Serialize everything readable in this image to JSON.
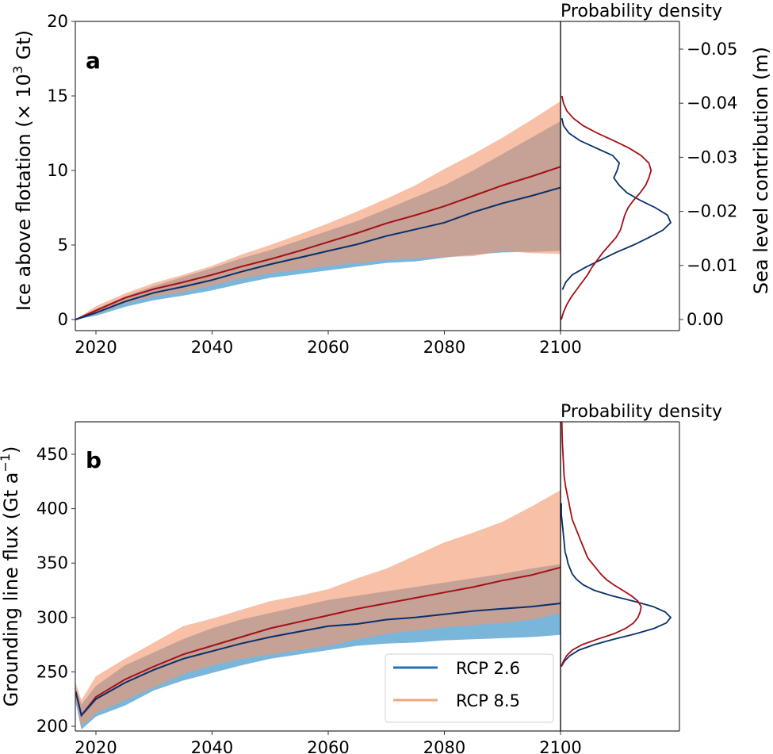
{
  "colors": {
    "rcp26_band": "#6baed6",
    "rcp85_band": "#f4a582",
    "overlap_band": "#c4a096",
    "rcp26_line": "#08306b",
    "rcp85_line": "#a50f15",
    "legend_rcp26": "#2171b5",
    "legend_rcp85": "#f4a582",
    "axis": "#333333"
  },
  "chart_data": [
    {
      "id": "a",
      "type": "area",
      "panel_label": "a",
      "title": "",
      "xlabel": "",
      "ylabel": "Ice above flotation (× 10³ Gt)",
      "ylabel_main": "Ice above flotation (× 10",
      "ylabel_sup": "3",
      "ylabel_tail": " Gt)",
      "xlim": [
        2016.5,
        2100
      ],
      "ylim": [
        -0.75,
        20
      ],
      "xticks": [
        2020,
        2040,
        2060,
        2080,
        2100
      ],
      "xtick_labels": [
        "2020",
        "2040",
        "2060",
        "2080",
        "2100"
      ],
      "yticks": [
        0,
        5,
        10,
        15,
        20
      ],
      "ytick_labels": [
        "0",
        "5",
        "10",
        "15",
        "20"
      ],
      "x": [
        2016.5,
        2020,
        2025,
        2030,
        2035,
        2040,
        2045,
        2050,
        2055,
        2060,
        2065,
        2070,
        2075,
        2080,
        2085,
        2090,
        2095,
        2100
      ],
      "series": [
        {
          "name": "RCP 2.6",
          "median": [
            0,
            0.45,
            1.2,
            1.8,
            2.2,
            2.65,
            3.2,
            3.7,
            4.15,
            4.6,
            5.05,
            5.6,
            6.05,
            6.5,
            7.2,
            7.8,
            8.3,
            8.85
          ],
          "low": [
            0,
            0.25,
            0.85,
            1.3,
            1.6,
            1.95,
            2.4,
            2.8,
            3.05,
            3.3,
            3.55,
            3.8,
            3.9,
            4.15,
            4.35,
            4.5,
            4.55,
            4.6
          ],
          "high": [
            0,
            0.7,
            1.55,
            2.25,
            2.85,
            3.45,
            4.1,
            4.65,
            5.3,
            5.95,
            6.6,
            7.4,
            8.2,
            9.0,
            10.0,
            11.1,
            12.2,
            13.3
          ]
        },
        {
          "name": "RCP 8.5",
          "median": [
            0,
            0.6,
            1.45,
            2.05,
            2.5,
            3.0,
            3.55,
            4.05,
            4.6,
            5.2,
            5.8,
            6.45,
            7.0,
            7.6,
            8.3,
            9.0,
            9.6,
            10.25
          ],
          "low": [
            0,
            0.35,
            1.1,
            1.55,
            1.85,
            2.3,
            2.75,
            3.1,
            3.35,
            3.6,
            3.8,
            4.0,
            4.1,
            4.2,
            4.25,
            4.6,
            4.45,
            4.4
          ],
          "high": [
            0,
            0.9,
            1.75,
            2.45,
            3.0,
            3.6,
            4.35,
            5.0,
            5.7,
            6.45,
            7.25,
            8.1,
            9.0,
            10.1,
            11.1,
            12.2,
            13.4,
            14.65
          ]
        }
      ],
      "pdf": {
        "title": "Probability density",
        "right_ylabel": "Sea level contribution (m)",
        "right_yticks": [
          0.0,
          -0.01,
          -0.02,
          -0.03,
          -0.04,
          -0.05
        ],
        "right_ytick_labels": [
          "0.00",
          "−0.01",
          "−0.02",
          "−0.03",
          "−0.04",
          "−0.05"
        ],
        "y": [
          0,
          0.5,
          1,
          1.5,
          2,
          2.5,
          3,
          3.5,
          4,
          4.5,
          5,
          5.5,
          6,
          6.5,
          7,
          7.5,
          8,
          8.5,
          9,
          9.5,
          10,
          10.5,
          11,
          11.5,
          12,
          12.5,
          13,
          13.5,
          14,
          14.5,
          15,
          15.5,
          16,
          16.5,
          17,
          17.5,
          18,
          18.5,
          19
        ],
        "series": [
          {
            "name": "RCP 2.6",
            "density": [
              null,
              null,
              null,
              null,
              0.01,
              0.04,
              0.1,
              0.22,
              0.36,
              0.5,
              0.66,
              0.8,
              0.93,
              1.0,
              0.97,
              0.86,
              0.72,
              0.6,
              0.53,
              0.48,
              0.51,
              0.53,
              0.47,
              0.32,
              0.17,
              0.07,
              0.02,
              0.005,
              null,
              null,
              null,
              null,
              null,
              null,
              null,
              null,
              null,
              null,
              null
            ]
          },
          {
            "name": "RCP 8.5",
            "density": [
              0.0,
              0.02,
              0.05,
              0.09,
              0.14,
              0.19,
              0.24,
              0.28,
              0.33,
              0.38,
              0.44,
              0.5,
              0.54,
              0.56,
              0.58,
              0.61,
              0.66,
              0.72,
              0.77,
              0.8,
              0.82,
              0.8,
              0.73,
              0.62,
              0.48,
              0.33,
              0.2,
              0.11,
              0.05,
              0.02,
              0.005,
              null,
              null,
              null,
              null,
              null,
              null,
              null,
              null
            ]
          }
        ]
      }
    },
    {
      "id": "b",
      "type": "area",
      "panel_label": "b",
      "title": "",
      "xlabel": "",
      "ylabel": "Grounding line flux (Gt a⁻¹)",
      "ylabel_main": "Grounding line flux (Gt a",
      "ylabel_sup": "−1",
      "ylabel_tail": ")",
      "xlim": [
        2016.5,
        2100
      ],
      "ylim": [
        195,
        480
      ],
      "xticks": [
        2020,
        2040,
        2060,
        2080,
        2100
      ],
      "xtick_labels": [
        "2020",
        "2040",
        "2060",
        "2080",
        "2100"
      ],
      "yticks": [
        200,
        250,
        300,
        350,
        400,
        450
      ],
      "ytick_labels": [
        "200",
        "250",
        "300",
        "350",
        "400",
        "450"
      ],
      "x": [
        2016.5,
        2017.5,
        2020,
        2025,
        2030,
        2035,
        2040,
        2045,
        2050,
        2055,
        2060,
        2065,
        2070,
        2075,
        2080,
        2085,
        2090,
        2095,
        2100
      ],
      "series": [
        {
          "name": "RCP 2.6",
          "median": [
            232,
            210,
            225,
            240,
            252,
            262,
            269,
            276,
            282,
            287,
            292,
            294,
            298,
            300,
            303,
            306,
            308,
            310,
            313
          ],
          "low": [
            222,
            197,
            209,
            219,
            233,
            242,
            249,
            256,
            262,
            266,
            270,
            274,
            276,
            277,
            279,
            280,
            281,
            282,
            284
          ],
          "high": [
            236,
            220,
            237,
            256,
            268,
            280,
            290,
            298,
            304,
            310,
            316,
            320,
            324,
            328,
            332,
            336,
            340,
            345,
            349
          ]
        },
        {
          "name": "RCP 8.5",
          "median": [
            232,
            210,
            227,
            243,
            255,
            266,
            274,
            282,
            290,
            296,
            302,
            308,
            313,
            318,
            323,
            328,
            334,
            339,
            346
          ],
          "low": [
            226,
            200,
            212,
            224,
            236,
            248,
            256,
            262,
            266,
            270,
            274,
            280,
            285,
            288,
            291,
            293,
            295,
            298,
            304
          ],
          "high": [
            240,
            224,
            246,
            262,
            277,
            292,
            299,
            307,
            315,
            320,
            326,
            336,
            345,
            357,
            369,
            378,
            388,
            402,
            417
          ]
        }
      ],
      "pdf": {
        "title": "Probability density",
        "y": [
          255,
          260,
          265,
          270,
          275,
          280,
          285,
          290,
          295,
          300,
          305,
          310,
          315,
          320,
          325,
          330,
          335,
          340,
          345,
          350,
          355,
          360,
          365,
          370,
          375,
          380,
          385,
          390,
          395,
          400,
          405,
          410,
          420,
          430,
          440,
          450,
          460,
          470,
          480
        ],
        "series": [
          {
            "name": "RCP 2.6",
            "density": [
              0.0,
              0.03,
              0.08,
              0.16,
              0.3,
              0.48,
              0.68,
              0.85,
              0.96,
              1.0,
              0.95,
              0.84,
              0.66,
              0.46,
              0.3,
              0.2,
              0.14,
              0.1,
              0.08,
              0.06,
              0.05,
              0.035,
              0.03,
              0.025,
              0.02,
              0.015,
              0.01,
              0.005,
              0.0,
              0.0,
              0.0,
              null,
              null,
              null,
              null,
              null,
              null,
              null,
              null
            ]
          },
          {
            "name": "RCP 8.5",
            "density": [
              0.0,
              0.02,
              0.05,
              0.1,
              0.19,
              0.33,
              0.48,
              0.59,
              0.66,
              0.7,
              0.72,
              0.73,
              0.7,
              0.64,
              0.56,
              0.48,
              0.41,
              0.36,
              0.32,
              0.28,
              0.24,
              0.22,
              0.2,
              0.18,
              0.16,
              0.14,
              0.12,
              0.1,
              0.09,
              0.08,
              0.07,
              0.06,
              0.04,
              0.025,
              0.02,
              0.015,
              0.01,
              0.007,
              0.005
            ]
          }
        ]
      },
      "legend": {
        "placement": "lower-right",
        "entries": [
          {
            "label": "RCP 2.6"
          },
          {
            "label": "RCP 8.5"
          }
        ]
      }
    }
  ]
}
